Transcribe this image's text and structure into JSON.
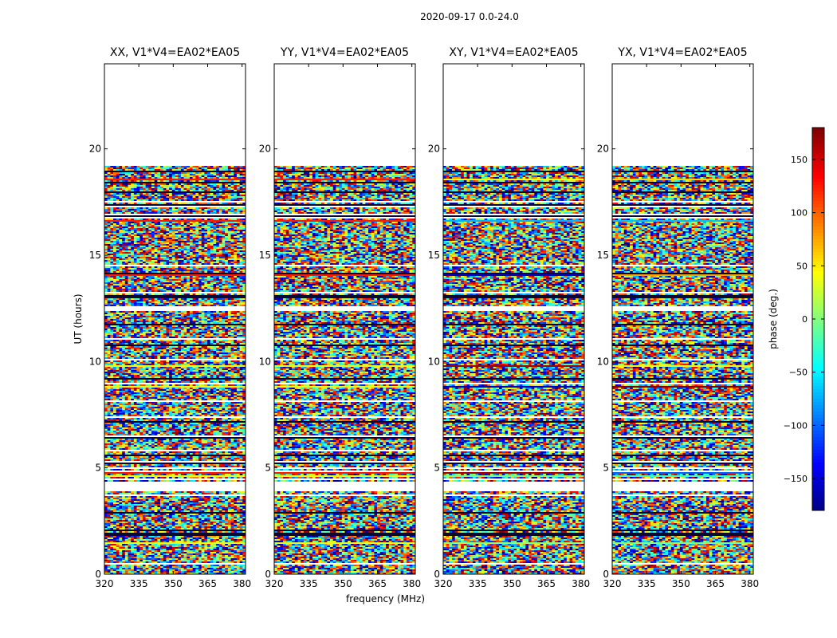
{
  "figure": {
    "suptitle": "2020-09-17 0.0-24.0",
    "xlabel": "frequency (MHz)",
    "ylabel": "UT (hours)",
    "colorbar_label": "phase (deg.)"
  },
  "chart_data": {
    "type": "heatmap",
    "title": "2020-09-17 0.0-24.0",
    "xlabel": "frequency (MHz)",
    "ylabel": "UT (hours)",
    "xlim": [
      320,
      381.5
    ],
    "ylim": [
      0,
      24
    ],
    "xticks": [
      320,
      335,
      350,
      365,
      380
    ],
    "yticks": [
      0,
      5,
      10,
      15,
      20
    ],
    "colorbar": {
      "label": "phase (deg.)",
      "range": [
        -180,
        180
      ],
      "ticks": [
        -150,
        -100,
        -50,
        0,
        50,
        100,
        150
      ],
      "colormap": "jet"
    },
    "data_time_range_hours": [
      0,
      19.2
    ],
    "flagged_gaps_hours": [
      [
        3.9,
        4.4
      ],
      [
        12.4,
        12.6
      ],
      [
        17.5,
        17.6
      ]
    ],
    "panels": [
      {
        "title": "XX, V1*V4=EA02*EA05",
        "polarization": "XX"
      },
      {
        "title": "YY, V1*V4=EA02*EA05",
        "polarization": "YY"
      },
      {
        "title": "XY, V1*V4=EA02*EA05",
        "polarization": "XY"
      },
      {
        "title": "YX, V1*V4=EA02*EA05",
        "polarization": "YX"
      }
    ]
  }
}
